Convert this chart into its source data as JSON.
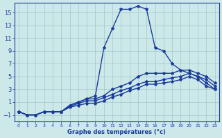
{
  "xlabel": "Graphe des températures (°c)",
  "bg_color": "#cce8e8",
  "line_color": "#1a3a9c",
  "marker": "*",
  "markersize": 3,
  "linewidth": 1.0,
  "xlim": [
    -0.5,
    23.5
  ],
  "ylim": [
    -2,
    16.5
  ],
  "yticks": [
    -1,
    1,
    3,
    5,
    7,
    9,
    11,
    13,
    15
  ],
  "xticks": [
    0,
    1,
    2,
    3,
    4,
    5,
    6,
    7,
    8,
    9,
    10,
    11,
    12,
    13,
    14,
    15,
    16,
    17,
    18,
    19,
    20,
    21,
    22,
    23
  ],
  "series": [
    {
      "x": [
        0,
        1,
        2,
        3,
        4,
        5,
        6,
        7,
        8,
        9,
        10,
        11,
        12,
        13,
        14,
        15,
        16,
        17,
        18,
        19,
        20,
        21,
        22,
        23
      ],
      "y": [
        -0.5,
        -1.0,
        -1.0,
        -0.5,
        -0.5,
        -0.5,
        0.5,
        1.0,
        1.5,
        2.0,
        9.5,
        12.5,
        15.5,
        15.5,
        16.0,
        15.5,
        9.5,
        9.0,
        7.0,
        6.0,
        5.5,
        5.0,
        4.0,
        3.0
      ]
    },
    {
      "x": [
        0,
        1,
        2,
        3,
        4,
        5,
        6,
        7,
        8,
        9,
        10,
        11,
        12,
        13,
        14,
        15,
        16,
        17,
        18,
        19,
        20,
        21,
        22,
        23
      ],
      "y": [
        -0.5,
        -1.0,
        -1.0,
        -0.5,
        -0.5,
        -0.5,
        0.5,
        1.0,
        1.5,
        1.5,
        2.0,
        3.0,
        3.5,
        4.0,
        5.0,
        5.5,
        5.5,
        5.5,
        5.5,
        6.0,
        6.0,
        5.5,
        5.0,
        4.0
      ]
    },
    {
      "x": [
        0,
        1,
        2,
        3,
        4,
        5,
        6,
        7,
        8,
        9,
        10,
        11,
        12,
        13,
        14,
        15,
        16,
        17,
        18,
        19,
        20,
        21,
        22,
        23
      ],
      "y": [
        -0.5,
        -1.0,
        -1.0,
        -0.5,
        -0.5,
        -0.5,
        0.3,
        0.8,
        1.2,
        1.2,
        1.7,
        2.2,
        2.8,
        3.2,
        3.8,
        4.2,
        4.2,
        4.5,
        4.8,
        5.0,
        5.5,
        5.0,
        4.5,
        3.5
      ]
    },
    {
      "x": [
        0,
        1,
        2,
        3,
        4,
        5,
        6,
        7,
        8,
        9,
        10,
        11,
        12,
        13,
        14,
        15,
        16,
        17,
        18,
        19,
        20,
        21,
        22,
        23
      ],
      "y": [
        -0.5,
        -1.0,
        -1.0,
        -0.5,
        -0.5,
        -0.5,
        0.2,
        0.5,
        0.8,
        0.8,
        1.2,
        1.8,
        2.2,
        2.8,
        3.2,
        3.8,
        3.8,
        4.0,
        4.2,
        4.5,
        5.0,
        4.5,
        3.5,
        3.0
      ]
    }
  ]
}
